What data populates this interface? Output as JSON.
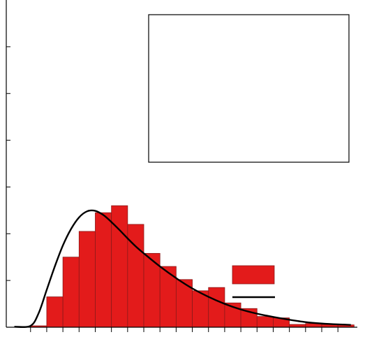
{
  "chart_data": {
    "type": "bar",
    "title": "",
    "xlabel": "",
    "ylabel": "",
    "bin_edges": [
      0,
      1,
      2,
      3,
      4,
      5,
      6,
      7,
      8,
      9,
      10,
      11,
      12,
      13,
      14,
      15,
      16,
      17,
      18,
      19,
      20
    ],
    "values": [
      0.3,
      6.5,
      15.0,
      20.5,
      24.5,
      26.0,
      22.0,
      15.8,
      13.0,
      10.2,
      7.8,
      8.5,
      5.2,
      4.0,
      2.3,
      2.0,
      0.6,
      0.8,
      0.6,
      0.5
    ],
    "ylim": [
      0,
      70
    ],
    "y_ticks": [
      10,
      20,
      30,
      40,
      50,
      60
    ],
    "xlim": [
      -1.5,
      20.2
    ],
    "x_ticks": [
      0,
      1,
      2,
      3,
      4,
      5,
      6,
      7,
      8,
      9,
      10,
      11,
      12,
      13,
      14,
      15,
      16,
      17,
      18,
      19
    ],
    "fit_curve": {
      "x": [
        -1.0,
        0.0,
        0.5,
        1.0,
        1.5,
        2.0,
        2.5,
        3.0,
        3.5,
        4.0,
        4.5,
        5.0,
        5.5,
        6.0,
        6.5,
        7.0,
        8.0,
        9.0,
        10.0,
        11.0,
        12.0,
        13.0,
        14.0,
        15.0,
        16.0,
        17.0,
        18.0,
        19.0,
        19.8
      ],
      "y": [
        0.1,
        0.3,
        3.0,
        8.0,
        13.0,
        17.5,
        21.0,
        23.5,
        24.8,
        24.9,
        24.0,
        22.5,
        20.8,
        19.0,
        17.3,
        15.8,
        13.0,
        10.5,
        8.3,
        6.5,
        5.0,
        3.8,
        2.9,
        2.2,
        1.6,
        1.1,
        0.8,
        0.6,
        0.5
      ]
    },
    "legend": {
      "placement": "right",
      "entries": [
        {
          "kind": "bar"
        },
        {
          "kind": "line"
        }
      ]
    },
    "colors": {
      "bar": "#e31b1b",
      "line": "#000000"
    },
    "grid": false
  }
}
